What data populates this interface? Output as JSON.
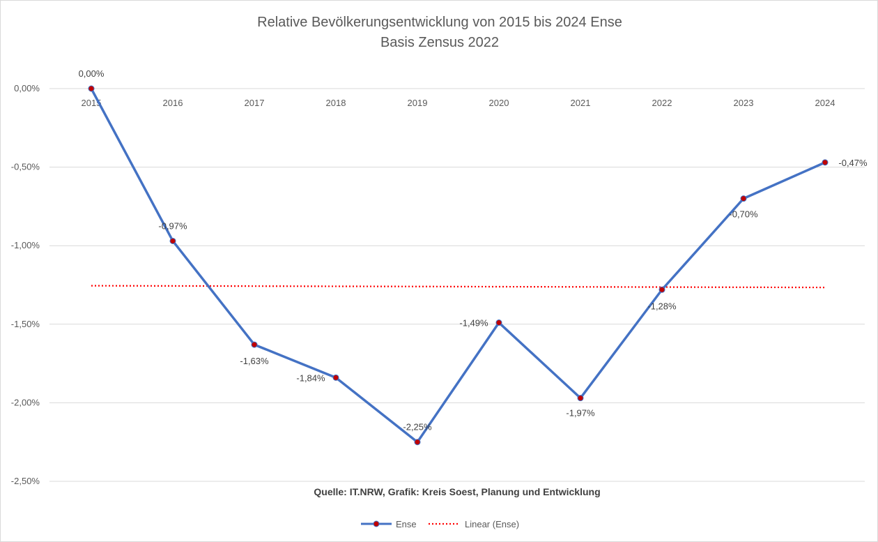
{
  "chart_data": {
    "type": "line",
    "title": "Relative Bevölkerungsentwicklung von 2015 bis 2024 Ense",
    "subtitle": "Basis Zensus 2022",
    "categories": [
      "2015",
      "2016",
      "2017",
      "2018",
      "2019",
      "2020",
      "2021",
      "2022",
      "2023",
      "2024"
    ],
    "series": [
      {
        "name": "Ense",
        "values": [
          0.0,
          -0.97,
          -1.63,
          -1.84,
          -2.25,
          -1.49,
          -1.97,
          -1.28,
          -0.7,
          -0.47
        ],
        "labels": [
          "0,00%",
          "-0,97%",
          "-1,63%",
          "-1,84%",
          "-2,25%",
          "-1,49%",
          "-1,97%",
          "-1,28%",
          "-0,70%",
          "-0,47%"
        ],
        "line_color": "#4472c4",
        "marker_color": "#c00000"
      },
      {
        "name": "Linear (Ense)",
        "type": "trendline",
        "start_value": -1.255,
        "end_value": -1.266,
        "color": "#ff0000"
      }
    ],
    "ylim": [
      -2.5,
      0.0
    ],
    "yticks": [
      0.0,
      -0.5,
      -1.0,
      -1.5,
      -2.0,
      -2.5
    ],
    "ytick_labels": [
      "0,00%",
      "-0,50%",
      "-1,00%",
      "-1,50%",
      "-2,00%",
      "-2,50%"
    ],
    "grid": true,
    "legend_position": "bottom",
    "source_note": "Quelle: IT.NRW, Grafik: Kreis Soest, Planung und Entwicklung"
  }
}
